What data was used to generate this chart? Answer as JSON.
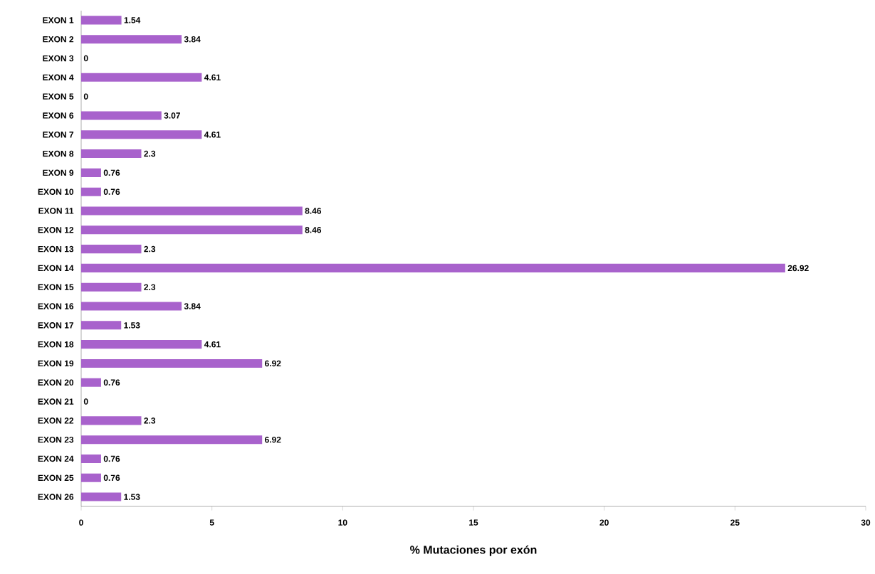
{
  "chart_data": {
    "type": "bar",
    "orientation": "horizontal",
    "categories": [
      "EXON 1",
      "EXON 2",
      "EXON 3",
      "EXON 4",
      "EXON 5",
      "EXON 6",
      "EXON 7",
      "EXON 8",
      "EXON 9",
      "EXON 10",
      "EXON 11",
      "EXON 12",
      "EXON 13",
      "EXON 14",
      "EXON 15",
      "EXON 16",
      "EXON 17",
      "EXON 18",
      "EXON 19",
      "EXON 20",
      "EXON 21",
      "EXON 22",
      "EXON 23",
      "EXON 24",
      "EXON 25",
      "EXON 26"
    ],
    "values": [
      1.54,
      3.84,
      0,
      4.61,
      0,
      3.07,
      4.61,
      2.3,
      0.76,
      0.76,
      8.46,
      8.46,
      2.3,
      26.92,
      2.3,
      3.84,
      1.53,
      4.61,
      6.92,
      0.76,
      0,
      2.3,
      6.92,
      0.76,
      0.76,
      1.53
    ],
    "color": "#a862cc",
    "data_labels": true,
    "xlim": [
      0,
      30
    ],
    "xticks": [
      0,
      5,
      10,
      15,
      20,
      25,
      30
    ],
    "xlabel": "% Mutaciones por exón",
    "grid": false
  }
}
